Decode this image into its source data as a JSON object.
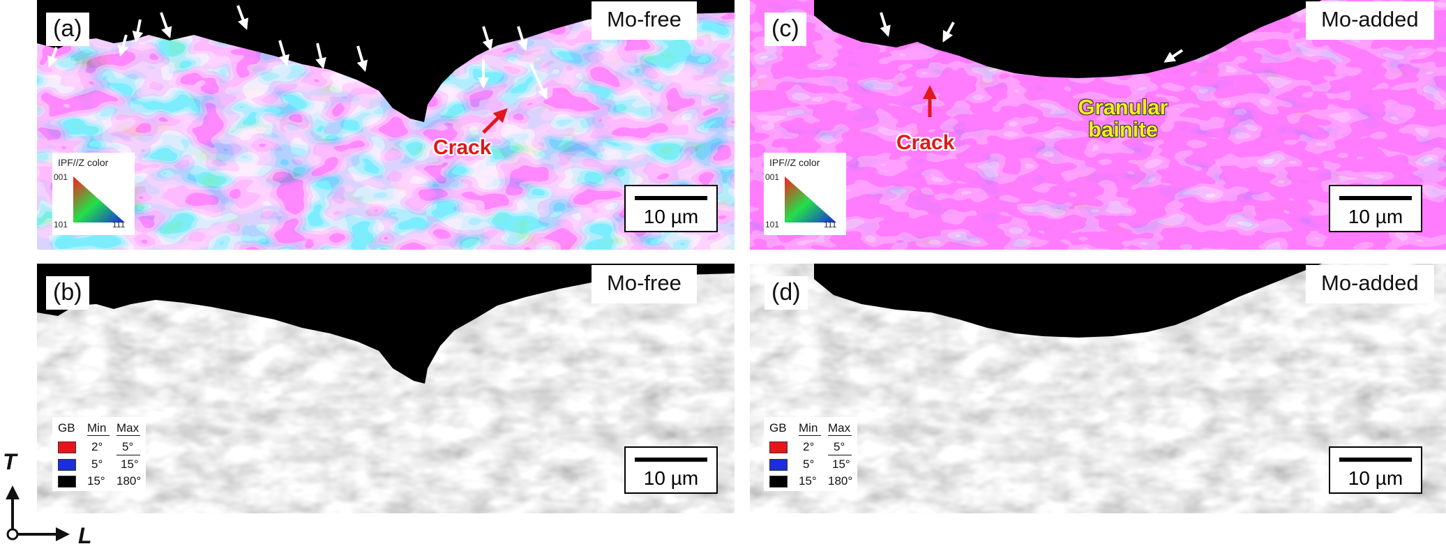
{
  "panels": {
    "a": {
      "label": "(a)",
      "alloy": "Mo-free",
      "scale": "10 µm",
      "crack": "Crack",
      "ipf": {
        "title": "IPF//Z color",
        "c001": "001",
        "c101": "101",
        "c111": "111"
      }
    },
    "b": {
      "label": "(b)",
      "alloy": "Mo-free",
      "scale": "10 µm",
      "gb": {
        "h1": "GB",
        "h2": "Min",
        "h3": "Max",
        "rows": [
          {
            "min": "2°",
            "max": "5°",
            "color": "#e8141a"
          },
          {
            "min": "5°",
            "max": "15°",
            "color": "#1a2ee0"
          },
          {
            "min": "15°",
            "max": "180°",
            "color": "#000000"
          }
        ]
      }
    },
    "c": {
      "label": "(c)",
      "alloy": "Mo-added",
      "scale": "10 µm",
      "crack": "Crack",
      "phase": "Granular bainite",
      "ipf": {
        "title": "IPF//Z color",
        "c001": "001",
        "c101": "101",
        "c111": "111"
      }
    },
    "d": {
      "label": "(d)",
      "alloy": "Mo-added",
      "scale": "10 µm",
      "gb": {
        "h1": "GB",
        "h2": "Min",
        "h3": "Max",
        "rows": [
          {
            "min": "2°",
            "max": "5°",
            "color": "#e8141a"
          },
          {
            "min": "5°",
            "max": "15°",
            "color": "#1a2ee0"
          },
          {
            "min": "15°",
            "max": "180°",
            "color": "#000000"
          }
        ]
      }
    }
  },
  "axes": {
    "T": "T",
    "L": "L"
  },
  "colors": {
    "crack_label": "#e0181a",
    "phase_label": "#f2ee1a",
    "arrow": "#ffffff",
    "crack_arrow": "#e0181a"
  }
}
